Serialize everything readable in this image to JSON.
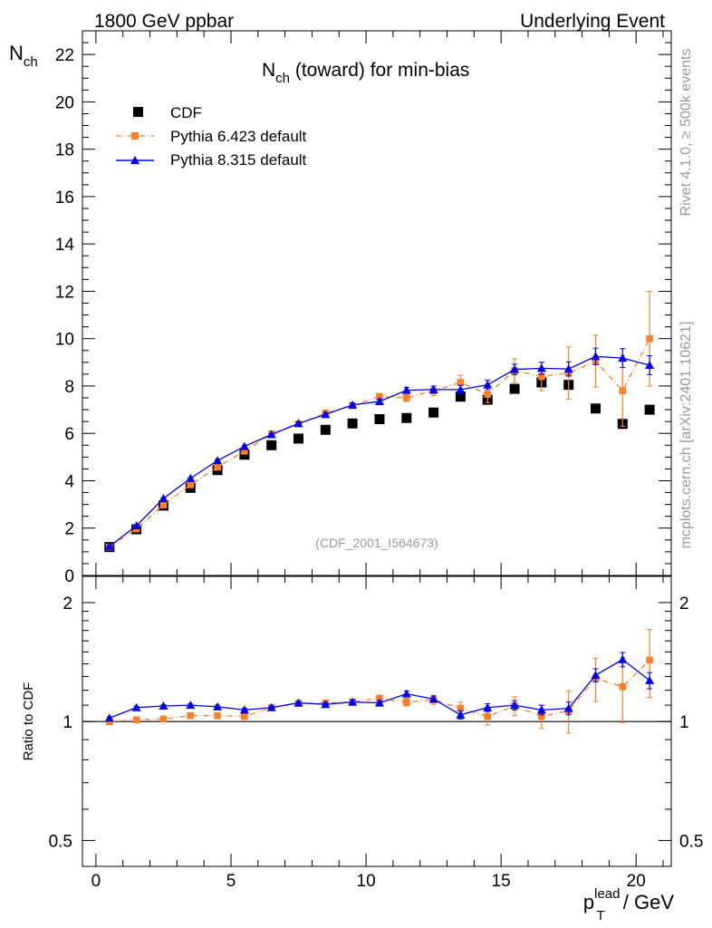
{
  "header": {
    "left": "1800 GeV ppbar",
    "right": "Underlying Event"
  },
  "side_labels": {
    "top": "Rivet 4.1.0, ≥ 500k events",
    "bottom": "mcplots.cern.ch [arXiv:2401.10621]"
  },
  "chart_data": [
    {
      "type": "scatter",
      "panel": "main",
      "title": "N_ch (toward) for min-bias",
      "title_parts": {
        "main": "N",
        "sub": "ch",
        "rest": " (toward) for min-bias"
      },
      "watermark": "(CDF_2001_I564673)",
      "ylabel_parts": {
        "main": "N",
        "sub": "ch"
      },
      "xlim": [
        -0.5,
        21.3
      ],
      "ylim": [
        0,
        23
      ],
      "yticks": [
        0,
        2,
        4,
        6,
        8,
        10,
        12,
        14,
        16,
        18,
        20,
        22
      ],
      "legend_position": "top-left",
      "x": [
        0.5,
        1.5,
        2.5,
        3.5,
        4.5,
        5.5,
        6.5,
        7.5,
        8.5,
        9.5,
        10.5,
        11.5,
        12.5,
        13.5,
        14.5,
        15.5,
        16.5,
        17.5,
        18.5,
        19.5,
        20.5
      ],
      "series": [
        {
          "name": "CDF",
          "color": "#000000",
          "marker": "square",
          "values": [
            1.2,
            1.95,
            2.95,
            3.7,
            4.45,
            5.1,
            5.5,
            5.78,
            6.15,
            6.42,
            6.6,
            6.65,
            6.88,
            7.55,
            7.42,
            7.88,
            8.15,
            8.05,
            7.05,
            6.4,
            7.0
          ]
        },
        {
          "name": "Pythia 6.423 default",
          "color": "#ff7f27",
          "marker": "square",
          "line": "dash-dot",
          "values": [
            1.2,
            1.97,
            2.98,
            3.83,
            4.57,
            5.25,
            5.98,
            6.4,
            6.85,
            7.17,
            7.56,
            7.5,
            7.8,
            8.15,
            7.65,
            8.65,
            8.4,
            8.55,
            9.05,
            7.8,
            10.0
          ],
          "errors": [
            0.03,
            0.03,
            0.04,
            0.05,
            0.06,
            0.07,
            0.07,
            0.08,
            0.09,
            0.1,
            0.12,
            0.15,
            0.2,
            0.3,
            0.35,
            0.5,
            0.6,
            1.1,
            1.1,
            1.5,
            2.0
          ]
        },
        {
          "name": "Pythia 8.315 default",
          "color": "#0000ee",
          "marker": "triangle",
          "line": "solid",
          "values": [
            1.23,
            2.1,
            3.25,
            4.1,
            4.85,
            5.45,
            5.95,
            6.42,
            6.8,
            7.2,
            7.35,
            7.82,
            7.85,
            7.85,
            8.05,
            8.7,
            8.75,
            8.72,
            9.25,
            9.18,
            8.88
          ],
          "errors": [
            0.02,
            0.02,
            0.03,
            0.03,
            0.04,
            0.05,
            0.05,
            0.06,
            0.07,
            0.08,
            0.1,
            0.12,
            0.15,
            0.18,
            0.2,
            0.22,
            0.25,
            0.3,
            0.35,
            0.4,
            0.4
          ]
        }
      ]
    },
    {
      "type": "scatter",
      "panel": "ratio",
      "ylabel": "Ratio to CDF",
      "xlabel_parts": {
        "main": "p",
        "sub": "T",
        "sup": "lead",
        "rest": " / GeV"
      },
      "xlim": [
        -0.5,
        21.3
      ],
      "ylim": [
        0.43,
        2.33
      ],
      "yscale": "log",
      "xticks": [
        0,
        5,
        10,
        15,
        20
      ],
      "yticks": [
        0.5,
        1,
        2
      ],
      "reference_line": 1,
      "x": [
        0.5,
        1.5,
        2.5,
        3.5,
        4.5,
        5.5,
        6.5,
        7.5,
        8.5,
        9.5,
        10.5,
        11.5,
        12.5,
        13.5,
        14.5,
        15.5,
        16.5,
        17.5,
        18.5,
        19.5,
        20.5
      ],
      "series": [
        {
          "name": "Pythia 6.423 ratio",
          "color": "#ff7f27",
          "marker": "square",
          "line": "dash-dot",
          "values": [
            0.998,
            1.01,
            1.015,
            1.035,
            1.035,
            1.03,
            1.085,
            1.11,
            1.115,
            1.12,
            1.145,
            1.12,
            1.135,
            1.08,
            1.03,
            1.095,
            1.03,
            1.065,
            1.285,
            1.225,
            1.43
          ],
          "errors": [
            0.01,
            0.01,
            0.01,
            0.012,
            0.012,
            0.015,
            0.015,
            0.015,
            0.015,
            0.02,
            0.02,
            0.025,
            0.03,
            0.04,
            0.05,
            0.06,
            0.07,
            0.13,
            0.16,
            0.23,
            0.28
          ]
        },
        {
          "name": "Pythia 8.315 ratio",
          "color": "#0000ee",
          "marker": "triangle",
          "line": "solid",
          "values": [
            1.02,
            1.085,
            1.095,
            1.1,
            1.09,
            1.07,
            1.085,
            1.115,
            1.105,
            1.12,
            1.115,
            1.175,
            1.14,
            1.04,
            1.085,
            1.1,
            1.07,
            1.08,
            1.31,
            1.435,
            1.27
          ],
          "errors": [
            0.008,
            0.008,
            0.008,
            0.008,
            0.01,
            0.01,
            0.01,
            0.012,
            0.012,
            0.015,
            0.015,
            0.02,
            0.02,
            0.025,
            0.025,
            0.03,
            0.03,
            0.04,
            0.05,
            0.06,
            0.06
          ]
        }
      ]
    }
  ]
}
